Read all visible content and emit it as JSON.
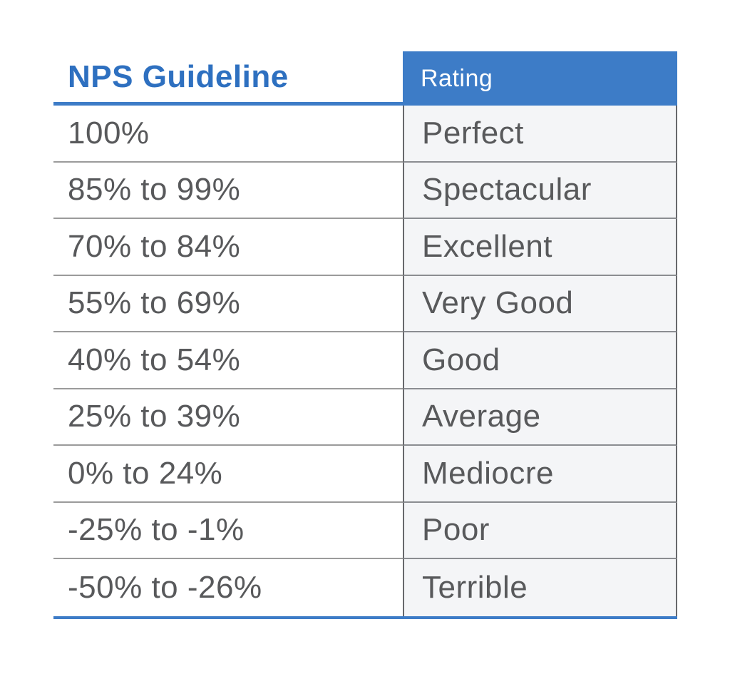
{
  "chart_data": {
    "type": "table",
    "title": "NPS Guideline",
    "columns": [
      "NPS Guideline",
      "Rating"
    ],
    "rows": [
      [
        "100%",
        "Perfect"
      ],
      [
        "85% to 99%",
        "Spectacular"
      ],
      [
        "70% to 84%",
        "Excellent"
      ],
      [
        "55% to 69%",
        "Very Good"
      ],
      [
        "40% to 54%",
        "Good"
      ],
      [
        "25% to 39%",
        "Average"
      ],
      [
        "0% to 24%",
        "Mediocre"
      ],
      [
        "-25% to -1%",
        "Poor"
      ],
      [
        "-50% to -26%",
        "Terrible"
      ]
    ],
    "layout": {
      "header_style": "left column header blue bold text on white; right column header white text on blue box",
      "grid": "horizontal dividers in left column; full borders on right column cells; blue rule under header and at table bottom"
    }
  },
  "header": {
    "left_label": "NPS Guideline",
    "right_label": "Rating"
  },
  "colors": {
    "accent_blue": "#3d7cc7",
    "title_blue": "#2e70c0",
    "text_gray": "#58595b",
    "left_divider_gray": "#9b9b9b",
    "right_border_gray": "#67686c",
    "right_cell_bg": "#f4f5f7",
    "page_bg": "#ffffff"
  }
}
